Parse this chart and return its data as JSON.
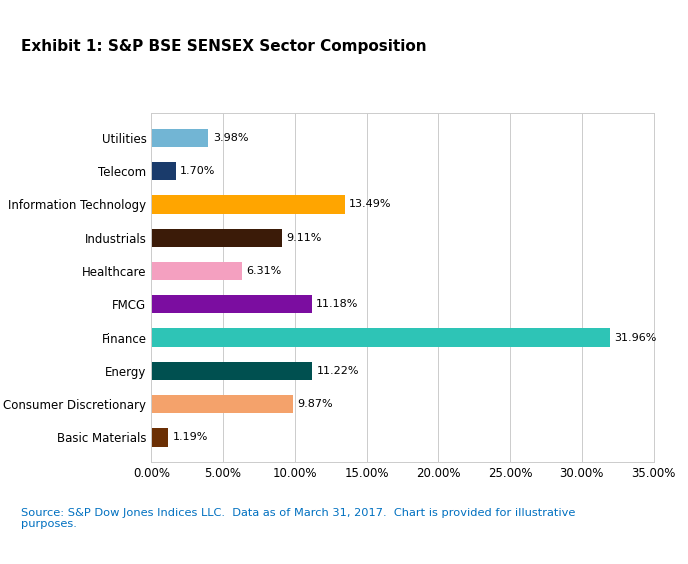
{
  "title": "Exhibit 1: S&P BSE SENSEX Sector Composition",
  "categories": [
    "Basic Materials",
    "Consumer Discretionary",
    "Energy",
    "Finance",
    "FMCG",
    "Healthcare",
    "Industrials",
    "Information Technology",
    "Telecom",
    "Utilities"
  ],
  "values": [
    1.19,
    9.87,
    11.22,
    31.96,
    11.18,
    6.31,
    9.11,
    13.49,
    1.7,
    3.98
  ],
  "colors": [
    "#6B2F04",
    "#F4A26B",
    "#005050",
    "#2EC4B6",
    "#7B0DA0",
    "#F4A0C0",
    "#3B1B08",
    "#FFA500",
    "#1A3B6B",
    "#72B5D4"
  ],
  "xlim": [
    0,
    35
  ],
  "xticks": [
    0,
    5,
    10,
    15,
    20,
    25,
    30,
    35
  ],
  "xtick_labels": [
    "0.00%",
    "5.00%",
    "10.00%",
    "15.00%",
    "20.00%",
    "25.00%",
    "30.00%",
    "35.00%"
  ],
  "source_text": "Source: S&P Dow Jones Indices LLC.  Data as of March 31, 2017.  Chart is provided for illustrative\npurposes.",
  "source_color": "#0070C0",
  "background_color": "#FFFFFF",
  "bar_height": 0.55,
  "label_fontsize": 8.5,
  "title_fontsize": 11,
  "tick_fontsize": 8.5,
  "value_fontsize": 8.0,
  "grid_color": "#CCCCCC"
}
